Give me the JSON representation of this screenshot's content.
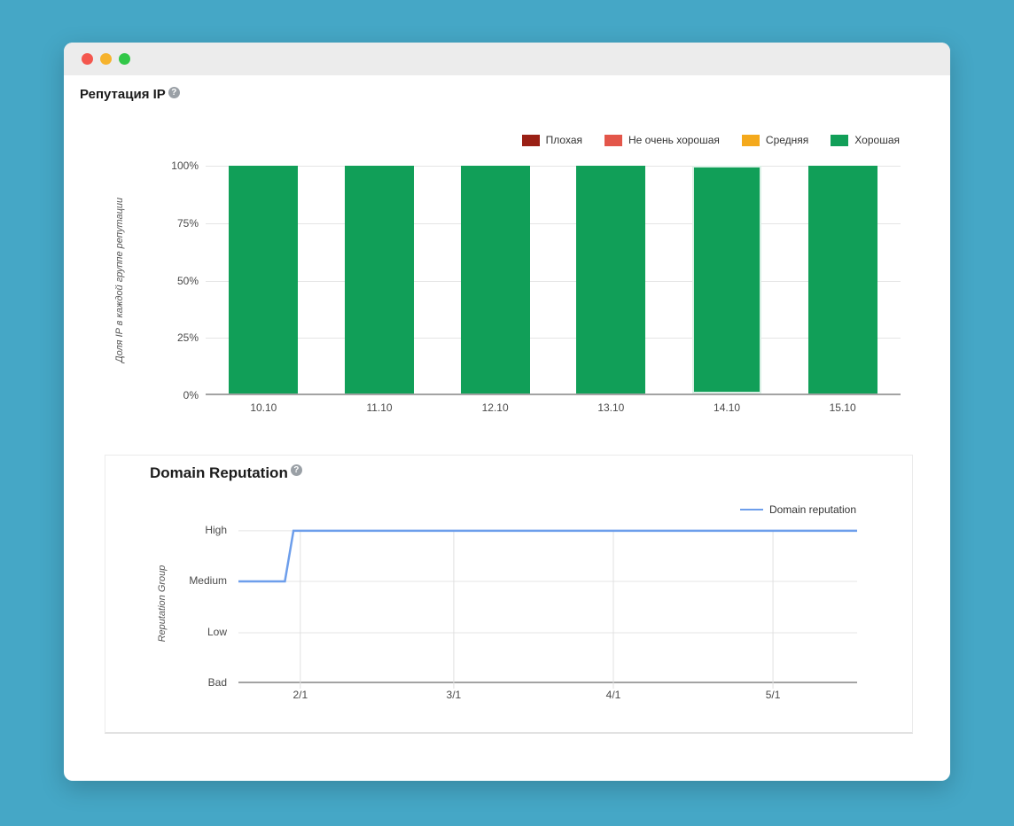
{
  "window": {
    "traffic_lights": [
      {
        "name": "close",
        "color": "#f4574e"
      },
      {
        "name": "minimize",
        "color": "#f6b32d"
      },
      {
        "name": "zoom",
        "color": "#32c748"
      }
    ]
  },
  "ip_reputation": {
    "title": "Репутация IP",
    "help": "?"
  },
  "domain_reputation": {
    "title": "Domain Reputation",
    "help": "?"
  },
  "chart_data": [
    {
      "type": "bar",
      "title": "Репутация IP",
      "stacked": true,
      "categories": [
        "10.10",
        "11.10",
        "12.10",
        "13.10",
        "14.10",
        "15.10"
      ],
      "series": [
        {
          "name": "Плохая",
          "color": "#9a2015",
          "values": [
            0,
            0,
            0,
            0,
            0,
            0
          ]
        },
        {
          "name": "Не очень хорошая",
          "color": "#e3564a",
          "values": [
            0,
            0,
            0,
            0,
            0,
            0
          ]
        },
        {
          "name": "Средняя",
          "color": "#f4a91c",
          "values": [
            0,
            0,
            0,
            0,
            0,
            0
          ]
        },
        {
          "name": "Хорошая",
          "color": "#119f58",
          "values": [
            100,
            100,
            100,
            100,
            100,
            100
          ]
        }
      ],
      "ylabel": "Доля IP в каждой группе репутации",
      "ylim": [
        0,
        100
      ],
      "yticks": [
        "100%",
        "75%",
        "50%",
        "25%",
        "0%"
      ],
      "selected_category": "14.10",
      "legend_position": "top-right",
      "grid": true
    },
    {
      "type": "line",
      "title": "Domain Reputation",
      "ylabel": "Reputation Group",
      "levels_top_to_bottom": [
        "High",
        "Medium",
        "Low",
        "Bad"
      ],
      "level_y_frac": {
        "High": 0.044,
        "Medium": 0.361,
        "Low": 0.683,
        "Bad": 1.0
      },
      "x_ticks": [
        {
          "label": "2/1",
          "pos": 0.1
        },
        {
          "label": "3/1",
          "pos": 0.348
        },
        {
          "label": "4/1",
          "pos": 0.606
        },
        {
          "label": "5/1",
          "pos": 0.864
        }
      ],
      "series": [
        {
          "name": "Domain reputation",
          "color": "#6d9eeb",
          "points": [
            {
              "pos": 0.0,
              "level": "Medium"
            },
            {
              "pos": 0.075,
              "level": "Medium"
            },
            {
              "pos": 0.089,
              "level": "High"
            },
            {
              "pos": 1.0,
              "level": "High"
            }
          ]
        }
      ],
      "legend_position": "top-right",
      "grid": true
    }
  ]
}
